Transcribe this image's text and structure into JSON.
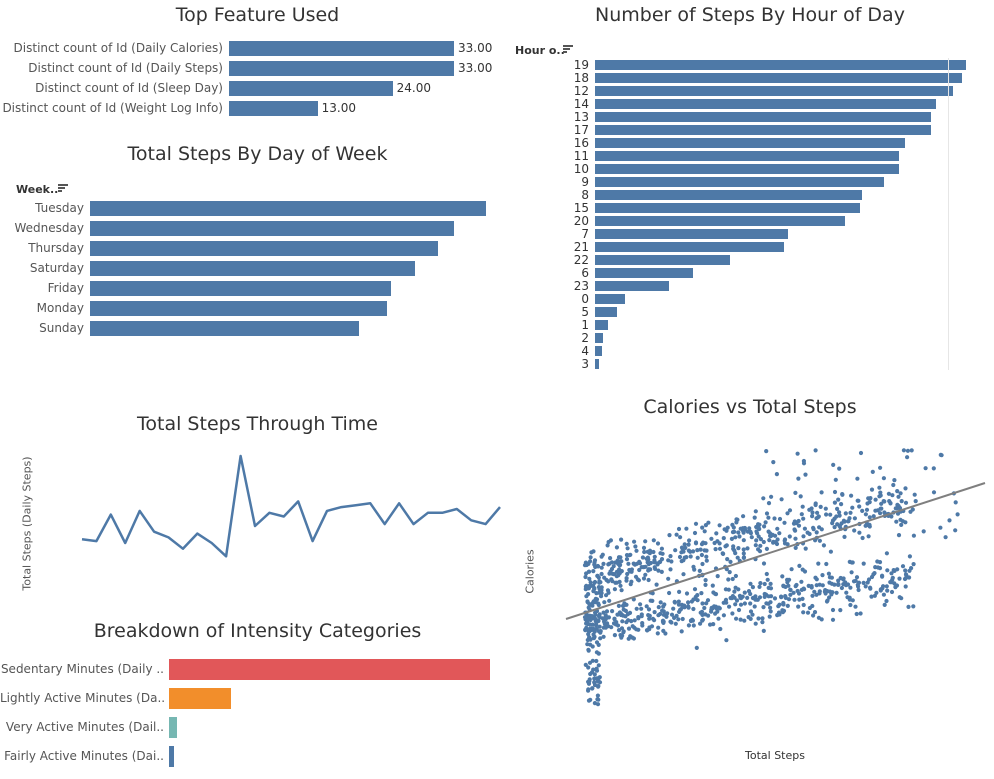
{
  "chart_data": [
    {
      "id": "feature",
      "type": "bar",
      "orientation": "horizontal",
      "title": "Top Feature Used",
      "categories": [
        "Distinct count of Id (Daily Calories)",
        "Distinct count of Id (Daily Steps)",
        "Distinct count of Id (Sleep Day)",
        "Distinct count of Id (Weight Log Info)"
      ],
      "values": [
        33,
        33,
        24,
        13
      ],
      "value_labels": [
        "33.00",
        "33.00",
        "24.00",
        "13.00"
      ],
      "color": "#4e79a7"
    },
    {
      "id": "weekday",
      "type": "bar",
      "orientation": "horizontal",
      "title": "Total Steps By Day of Week",
      "header": "Week..",
      "categories": [
        "Tuesday",
        "Wednesday",
        "Thursday",
        "Saturday",
        "Friday",
        "Monday",
        "Sunday"
      ],
      "values": [
        100,
        92,
        88,
        82,
        76,
        75,
        68
      ],
      "color": "#4e79a7"
    },
    {
      "id": "hour",
      "type": "bar",
      "orientation": "horizontal",
      "title": "Number of Steps By Hour of Day",
      "header": "Hour o..",
      "categories": [
        "19",
        "18",
        "12",
        "14",
        "13",
        "17",
        "16",
        "11",
        "10",
        "9",
        "8",
        "15",
        "20",
        "7",
        "21",
        "22",
        "6",
        "23",
        "0",
        "5",
        "1",
        "2",
        "4",
        "3"
      ],
      "values": [
        100,
        99,
        96.5,
        92,
        90.5,
        90.5,
        83.5,
        82,
        82,
        78,
        72,
        71.5,
        67.5,
        52,
        51,
        36.5,
        26.5,
        20,
        8,
        6,
        3.6,
        2.2,
        1.8,
        1
      ],
      "color": "#4e79a7"
    },
    {
      "id": "timeline",
      "type": "line",
      "title": "Total Steps Through Time",
      "ylabel": "Total Steps (Daily Steps)",
      "values": [
        30,
        29,
        43,
        28,
        45,
        34,
        31,
        25,
        33,
        28,
        21,
        74,
        37,
        44,
        42,
        50,
        29,
        45,
        47,
        48,
        49,
        38,
        49,
        38,
        44,
        44,
        46,
        40,
        38,
        47
      ],
      "color": "#4e79a7"
    },
    {
      "id": "intensity",
      "type": "bar",
      "orientation": "horizontal",
      "title": "Breakdown of Intensity Categories",
      "categories": [
        "Sedentary Minutes (Daily ..",
        "Lightly Active Minutes (Da..",
        "Very Active Minutes (Dail..",
        "Fairly Active Minutes (Dai.."
      ],
      "values": [
        100,
        19.3,
        2.5,
        1.6
      ],
      "colors": [
        "#e15759",
        "#f28e2b",
        "#76b7b2",
        "#4e79a7"
      ]
    },
    {
      "id": "scatter",
      "type": "scatter",
      "title": "Calories vs Total Steps",
      "xlabel": "Total Steps",
      "ylabel": "Calories",
      "trendline": true,
      "color": "#4e79a7"
    }
  ]
}
